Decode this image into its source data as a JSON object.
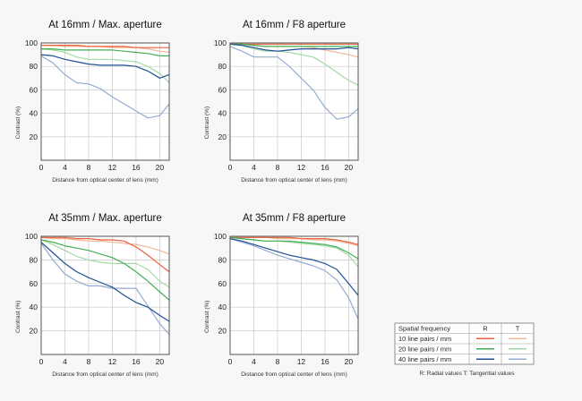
{
  "chart_data": [
    {
      "type": "line",
      "title": "At 16mm / Max. aperture",
      "xlabel": "Distance from optical center of lens (mm)",
      "ylabel": "Contrast (%)",
      "xlim": [
        0,
        21.6
      ],
      "ylim": [
        0,
        100
      ],
      "xticks": [
        0,
        4,
        8,
        12,
        16,
        20
      ],
      "yticks": [
        20,
        40,
        60,
        80,
        100
      ],
      "x": [
        0,
        2,
        4,
        6,
        8,
        10,
        12,
        14,
        16,
        18,
        20,
        21.6
      ],
      "series": [
        {
          "name": "10 line pairs / mm R",
          "key": "10R",
          "values": [
            98,
            98,
            98,
            98,
            97,
            97,
            97,
            97,
            96,
            96,
            96,
            96
          ]
        },
        {
          "name": "10 line pairs / mm T",
          "key": "10T",
          "values": [
            98,
            98,
            97,
            97,
            97,
            97,
            96,
            96,
            96,
            95,
            93,
            92
          ]
        },
        {
          "name": "20 line pairs / mm R",
          "key": "20R",
          "values": [
            95,
            95,
            94,
            94,
            94,
            94,
            94,
            93,
            92,
            91,
            89,
            89
          ]
        },
        {
          "name": "20 line pairs / mm T",
          "key": "20T",
          "values": [
            95,
            94,
            92,
            88,
            86,
            86,
            86,
            85,
            84,
            80,
            74,
            66
          ]
        },
        {
          "name": "40 line pairs / mm R",
          "key": "40R",
          "values": [
            90,
            89,
            86,
            84,
            82,
            81,
            81,
            81,
            80,
            76,
            70,
            73
          ]
        },
        {
          "name": "40 line pairs / mm T",
          "key": "40T",
          "values": [
            89,
            83,
            73,
            66,
            65,
            61,
            54,
            48,
            42,
            36,
            38,
            48
          ]
        }
      ]
    },
    {
      "type": "line",
      "title": "At 16mm / F8 aperture",
      "xlabel": "Distance from optical center of lens (mm)",
      "ylabel": "Contrast (%)",
      "xlim": [
        0,
        21.6
      ],
      "ylim": [
        0,
        100
      ],
      "xticks": [
        0,
        4,
        8,
        12,
        16,
        20
      ],
      "yticks": [
        20,
        40,
        60,
        80,
        100
      ],
      "x": [
        0,
        2,
        4,
        6,
        8,
        10,
        12,
        14,
        16,
        18,
        20,
        21.6
      ],
      "series": [
        {
          "name": "10 line pairs / mm R",
          "key": "10R",
          "values": [
            99,
            99,
            99,
            99,
            99,
            99,
            99,
            99,
            99,
            99,
            99,
            99
          ]
        },
        {
          "name": "10 line pairs / mm T",
          "key": "10T",
          "values": [
            99,
            99,
            98,
            97,
            97,
            97,
            97,
            96,
            94,
            92,
            90,
            88
          ]
        },
        {
          "name": "20 line pairs / mm R",
          "key": "20R",
          "values": [
            99,
            99,
            98,
            97,
            97,
            97,
            97,
            97,
            97,
            97,
            97,
            97
          ]
        },
        {
          "name": "20 line pairs / mm T",
          "key": "20T",
          "values": [
            99,
            98,
            95,
            93,
            93,
            92,
            90,
            88,
            82,
            75,
            68,
            64
          ]
        },
        {
          "name": "40 line pairs / mm R",
          "key": "40R",
          "values": [
            99,
            98,
            96,
            94,
            93,
            94,
            95,
            95,
            95,
            95,
            96,
            95
          ]
        },
        {
          "name": "40 line pairs / mm T",
          "key": "40T",
          "values": [
            97,
            93,
            88,
            88,
            88,
            80,
            70,
            60,
            45,
            35,
            37,
            44
          ]
        }
      ]
    },
    {
      "type": "line",
      "title": "At 35mm / Max. aperture",
      "xlabel": "Distance from optical center of lens (mm)",
      "ylabel": "Contrast (%)",
      "xlim": [
        0,
        21.6
      ],
      "ylim": [
        0,
        100
      ],
      "xticks": [
        0,
        4,
        8,
        12,
        16,
        20
      ],
      "yticks": [
        20,
        40,
        60,
        80,
        100
      ],
      "x": [
        0,
        2,
        4,
        6,
        8,
        10,
        12,
        14,
        16,
        18,
        20,
        21.6
      ],
      "series": [
        {
          "name": "10 line pairs / mm R",
          "key": "10R",
          "values": [
            99,
            99,
            99,
            98,
            98,
            97,
            97,
            96,
            91,
            84,
            76,
            70
          ]
        },
        {
          "name": "10 line pairs / mm T",
          "key": "10T",
          "values": [
            99,
            98,
            98,
            97,
            96,
            96,
            95,
            94,
            93,
            91,
            88,
            85
          ]
        },
        {
          "name": "20 line pairs / mm R",
          "key": "20R",
          "values": [
            97,
            95,
            92,
            90,
            88,
            85,
            82,
            77,
            70,
            62,
            53,
            46
          ]
        },
        {
          "name": "20 line pairs / mm T",
          "key": "20T",
          "values": [
            97,
            93,
            88,
            83,
            80,
            78,
            77,
            77,
            77,
            72,
            62,
            57
          ]
        },
        {
          "name": "40 line pairs / mm R",
          "key": "40R",
          "values": [
            95,
            86,
            77,
            70,
            65,
            61,
            57,
            50,
            44,
            40,
            33,
            28
          ]
        },
        {
          "name": "40 line pairs / mm T",
          "key": "40T",
          "values": [
            94,
            80,
            68,
            62,
            58,
            58,
            56,
            56,
            56,
            41,
            26,
            17
          ]
        }
      ]
    },
    {
      "type": "line",
      "title": "At 35mm / F8 aperture",
      "xlabel": "Distance from optical center of lens (mm)",
      "ylabel": "Contrast (%)",
      "xlim": [
        0,
        21.6
      ],
      "ylim": [
        0,
        100
      ],
      "xticks": [
        0,
        4,
        8,
        12,
        16,
        20
      ],
      "yticks": [
        20,
        40,
        60,
        80,
        100
      ],
      "x": [
        0,
        2,
        4,
        6,
        8,
        10,
        12,
        14,
        16,
        18,
        20,
        21.6
      ],
      "series": [
        {
          "name": "10 line pairs / mm R",
          "key": "10R",
          "values": [
            99,
            99,
            99,
            99,
            99,
            99,
            98,
            98,
            98,
            97,
            95,
            93
          ]
        },
        {
          "name": "10 line pairs / mm T",
          "key": "10T",
          "values": [
            99,
            99,
            99,
            99,
            98,
            98,
            98,
            97,
            97,
            96,
            94,
            92
          ]
        },
        {
          "name": "20 line pairs / mm R",
          "key": "20R",
          "values": [
            99,
            98,
            97,
            96,
            96,
            96,
            95,
            94,
            93,
            91,
            86,
            81
          ]
        },
        {
          "name": "20 line pairs / mm T",
          "key": "20T",
          "values": [
            99,
            98,
            97,
            96,
            96,
            95,
            94,
            93,
            92,
            90,
            84,
            74
          ]
        },
        {
          "name": "40 line pairs / mm R",
          "key": "40R",
          "values": [
            98,
            96,
            93,
            90,
            87,
            84,
            82,
            80,
            77,
            72,
            60,
            50
          ]
        },
        {
          "name": "40 line pairs / mm T",
          "key": "40T",
          "values": [
            98,
            95,
            92,
            88,
            84,
            81,
            78,
            75,
            71,
            63,
            48,
            30
          ]
        }
      ]
    }
  ],
  "series_colors": {
    "10R": "#e8613a",
    "10T": "#f3b79b",
    "20R": "#44ad55",
    "20T": "#a3d9a4",
    "40R": "#1f4f93",
    "40T": "#93acd0"
  },
  "legend": {
    "header": "Spatial frequency",
    "col_r": "R",
    "col_t": "T",
    "rows": [
      {
        "label": "10 line pairs / mm",
        "key": "10"
      },
      {
        "label": "20 line pairs / mm",
        "key": "20"
      },
      {
        "label": "40 line pairs / mm",
        "key": "40"
      }
    ],
    "note": "R: Radial values  T: Tangential values"
  }
}
